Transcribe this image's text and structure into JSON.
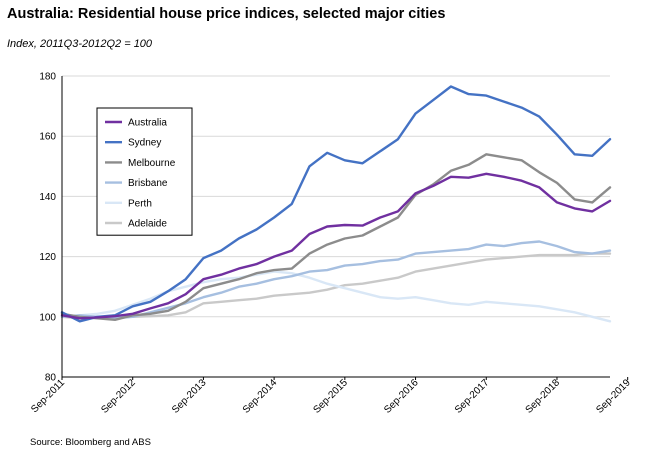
{
  "header": {
    "title": "Australia: Residential house price indices, selected major cities",
    "subtitle": "Index, 2011Q3-2012Q2  = 100"
  },
  "footer": {
    "source": "Source: Bloomberg and ABS"
  },
  "chart_data": {
    "type": "line",
    "title": "Australia: Residential house price indices, selected major cities",
    "subtitle": "Index, 2011Q3-2012Q2  = 100",
    "xlabel": "",
    "ylabel": "",
    "ylim": [
      80,
      180
    ],
    "yticks": [
      80,
      100,
      120,
      140,
      160,
      180
    ],
    "grid": "horizontal",
    "legend_position": "top-left",
    "x_start": "Sep-2011",
    "x_frequency": "quarterly",
    "xtick_labels": [
      "Sep-2011",
      "Sep-2012",
      "Sep-2013",
      "Sep-2014",
      "Sep-2015",
      "Sep-2016",
      "Sep-2017",
      "Sep-2018",
      "Sep-2019"
    ],
    "series": [
      {
        "name": "Australia",
        "color": "#7030a0",
        "width": 2.4,
        "values": [
          100.5,
          99.5,
          99.8,
          100.2,
          101.0,
          102.8,
          104.5,
          107.5,
          112.5,
          114.0,
          116.0,
          117.5,
          120.0,
          122.0,
          127.5,
          130.0,
          130.5,
          130.3,
          133.0,
          135.0,
          141.0,
          143.5,
          146.5,
          146.2,
          147.5,
          146.5,
          145.2,
          143.0,
          138.0,
          136.0,
          135.0,
          138.5
        ]
      },
      {
        "name": "Sydney",
        "color": "#4472c4",
        "width": 2.4,
        "values": [
          101.5,
          98.5,
          100.0,
          100.5,
          103.5,
          105.0,
          108.5,
          112.5,
          119.5,
          122.0,
          126.0,
          129.0,
          133.0,
          137.5,
          150.0,
          154.5,
          152.0,
          151.0,
          155.0,
          159.0,
          167.5,
          172.0,
          176.5,
          174.0,
          173.5,
          171.5,
          169.5,
          166.5,
          160.5,
          154.0,
          153.5,
          159.0
        ]
      },
      {
        "name": "Melbourne",
        "color": "#8c8c8c",
        "width": 2.4,
        "values": [
          101.0,
          100.0,
          99.5,
          99.0,
          100.5,
          101.0,
          102.0,
          105.0,
          109.5,
          111.0,
          112.5,
          114.5,
          115.5,
          116.0,
          121.0,
          124.0,
          126.0,
          127.0,
          130.0,
          133.0,
          140.5,
          144.0,
          148.5,
          150.5,
          154.0,
          153.0,
          152.0,
          148.0,
          144.5,
          139.0,
          138.0,
          143.0
        ]
      },
      {
        "name": "Brisbane",
        "color": "#a6bfe0",
        "width": 2.4,
        "values": [
          100.0,
          100.5,
          100.0,
          99.5,
          100.0,
          101.5,
          103.0,
          104.5,
          106.5,
          108.0,
          110.0,
          111.0,
          112.5,
          113.5,
          115.0,
          115.5,
          117.0,
          117.5,
          118.5,
          119.0,
          121.0,
          121.5,
          122.0,
          122.5,
          124.0,
          123.5,
          124.5,
          125.0,
          123.5,
          121.5,
          121.0,
          122.0
        ]
      },
      {
        "name": "Perth",
        "color": "#d9e7f6",
        "width": 2.4,
        "values": [
          100.0,
          100.5,
          101.0,
          102.0,
          104.0,
          106.0,
          108.5,
          110.0,
          111.5,
          112.5,
          113.0,
          114.0,
          115.0,
          114.5,
          113.0,
          111.0,
          109.5,
          108.0,
          106.5,
          106.0,
          106.5,
          105.5,
          104.5,
          104.0,
          105.0,
          104.5,
          104.0,
          103.5,
          102.5,
          101.5,
          100.0,
          98.5
        ]
      },
      {
        "name": "Adelaide",
        "color": "#c9c9c9",
        "width": 2.4,
        "values": [
          100.0,
          99.5,
          99.8,
          100.5,
          100.0,
          100.2,
          100.5,
          101.5,
          104.5,
          105.0,
          105.5,
          106.0,
          107.0,
          107.5,
          108.0,
          109.0,
          110.5,
          111.0,
          112.0,
          113.0,
          115.0,
          116.0,
          117.0,
          118.0,
          119.0,
          119.5,
          120.0,
          120.5,
          120.5,
          120.5,
          121.0,
          121.0
        ]
      }
    ]
  }
}
